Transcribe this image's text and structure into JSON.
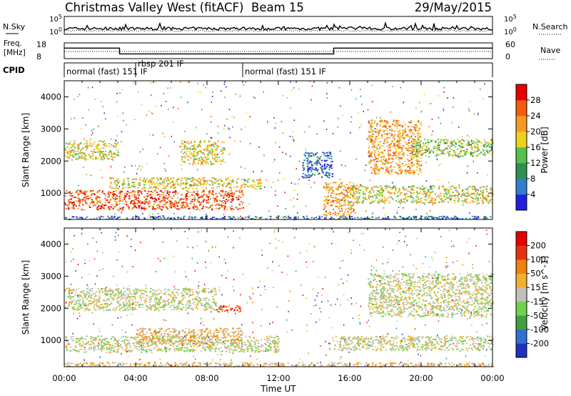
{
  "header": {
    "station": "Christmas Valley West (fitACF)",
    "beam": "Beam 15",
    "date": "29/May/2015"
  },
  "chart_data": [
    {
      "type": "line",
      "panel": "noise",
      "left_label": "N.Sky",
      "right_label": "N.Search",
      "ylim_left": [
        1,
        100000
      ],
      "ylim_right": [
        1,
        100000
      ],
      "ytick_labels_left": [
        "10^5",
        "10^0"
      ],
      "ytick_labels_right": [
        "10^5",
        "10^0"
      ],
      "yscale": "log"
    },
    {
      "type": "line",
      "panel": "frequency",
      "left_label_lines": [
        "Freq.",
        "[MHz]"
      ],
      "right_label": "Nave",
      "ytick_labels_left": [
        "18",
        "8"
      ],
      "ytick_labels_right": [
        "60",
        "0"
      ],
      "ylim_left": [
        8,
        18
      ],
      "ylim_right": [
        0,
        60
      ],
      "series": [
        {
          "x": [
            0,
            3.1,
            3.1,
            15.1,
            15.1,
            24
          ],
          "y": [
            14.7,
            14.7,
            11.0,
            11.0,
            14.7,
            14.7
          ]
        }
      ]
    },
    {
      "type": "table",
      "panel": "cpid",
      "label": "CPID",
      "segments": [
        {
          "start": 0,
          "end": 4,
          "text": "normal (fast) 151 IF"
        },
        {
          "start": 4,
          "end": 10,
          "text": "rbsp 201 IF"
        },
        {
          "start": 10,
          "end": 24,
          "text": "normal (fast) 151 IF"
        }
      ]
    },
    {
      "type": "heatmap",
      "panel": "power",
      "ylabel": "Slant Range [km]",
      "ylim": [
        180,
        4500
      ],
      "ytick_labels": [
        "1000",
        "2000",
        "3000",
        "4000"
      ],
      "colorbar_label": "Power [dB]",
      "colorbar_ticks": [
        "4",
        "8",
        "12",
        "16",
        "20",
        "24",
        "28"
      ],
      "colorbar_colors": [
        "#1f1fe0",
        "#2e7fd0",
        "#2f8f4f",
        "#55c04d",
        "#f0d020",
        "#f59a20",
        "#f55a10",
        "#e80000"
      ],
      "features": [
        {
          "x0": 0,
          "x1": 24,
          "y0": 200,
          "y1": 300,
          "level": 1
        },
        {
          "x0": 0,
          "x1": 10,
          "y0": 500,
          "y1": 1100,
          "level": 6
        },
        {
          "x0": 2.5,
          "x1": 11,
          "y0": 1150,
          "y1": 1500,
          "level": 4
        },
        {
          "x0": 0,
          "x1": 3,
          "y0": 2050,
          "y1": 2650,
          "level": 4
        },
        {
          "x0": 6.5,
          "x1": 9,
          "y0": 1900,
          "y1": 2650,
          "level": 4
        },
        {
          "x0": 13.3,
          "x1": 15,
          "y0": 1500,
          "y1": 2300,
          "level": 1
        },
        {
          "x0": 14.5,
          "x1": 16.2,
          "y0": 300,
          "y1": 1350,
          "level": 5
        },
        {
          "x0": 16,
          "x1": 24,
          "y0": 700,
          "y1": 1250,
          "level": 4
        },
        {
          "x0": 17,
          "x1": 20,
          "y0": 1600,
          "y1": 3300,
          "level": 5
        },
        {
          "x0": 19.5,
          "x1": 24,
          "y0": 2150,
          "y1": 2700,
          "level": 3
        }
      ]
    },
    {
      "type": "heatmap",
      "panel": "velocity",
      "ylabel": "Slant Range [km]",
      "xlabel": "Time UT",
      "ylim": [
        180,
        4500
      ],
      "xlim": [
        0,
        24
      ],
      "ytick_labels": [
        "1000",
        "2000",
        "3000",
        "4000"
      ],
      "xtick_labels": [
        "00:00",
        "04:00",
        "08:00",
        "12:00",
        "16:00",
        "20:00",
        "00:00"
      ],
      "colorbar_label": "Velocity [m s^-1]",
      "colorbar_ticks": [
        "200",
        "100",
        "50",
        "15",
        "-15",
        "-50",
        "-100",
        "-200"
      ],
      "colorbar_colors": [
        "#2030c0",
        "#3070d0",
        "#40a040",
        "#70d050",
        "#c0c0b8",
        "#f0b030",
        "#f08010",
        "#e83010",
        "#e80000"
      ],
      "features": [
        {
          "x0": 0,
          "x1": 24,
          "y0": 200,
          "y1": 330,
          "level": 5
        },
        {
          "x0": 0,
          "x1": 12,
          "y0": 650,
          "y1": 1150,
          "level": 4
        },
        {
          "x0": 4,
          "x1": 10,
          "y0": 900,
          "y1": 1400,
          "level": 5
        },
        {
          "x0": 0,
          "x1": 8.5,
          "y0": 1950,
          "y1": 2650,
          "level": 4
        },
        {
          "x0": 8.5,
          "x1": 10,
          "y0": 1900,
          "y1": 2100,
          "level": 7
        },
        {
          "x0": 15,
          "x1": 24,
          "y0": 700,
          "y1": 1150,
          "level": 4
        },
        {
          "x0": 17,
          "x1": 24,
          "y0": 1750,
          "y1": 3100,
          "level": 4
        }
      ]
    }
  ]
}
